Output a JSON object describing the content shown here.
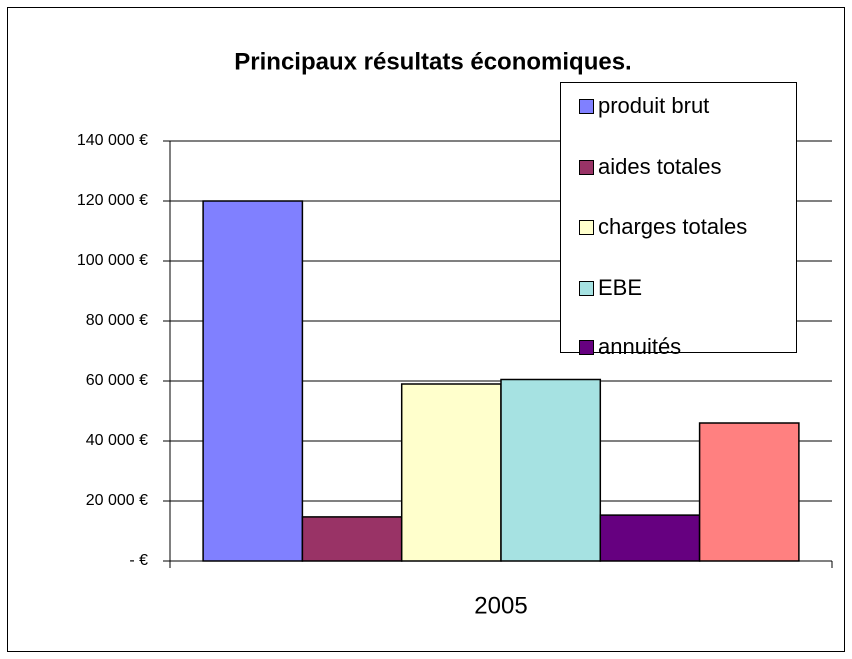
{
  "chart_data": {
    "type": "bar",
    "title": "Principaux résultats économiques.",
    "categories": [
      "2005"
    ],
    "series": [
      {
        "name": "produit brut",
        "color": "#8080ff",
        "values": [
          120000
        ]
      },
      {
        "name": "aides totales",
        "color": "#993366",
        "values": [
          14700
        ]
      },
      {
        "name": "charges totales",
        "color": "#ffffcc",
        "values": [
          59000
        ]
      },
      {
        "name": "EBE",
        "color": "#a6e2e2",
        "values": [
          60500
        ]
      },
      {
        "name": "annuités",
        "color": "#660080",
        "values": [
          15300
        ]
      },
      {
        "color": "#ff8080",
        "values": [
          46000
        ]
      }
    ],
    "ylim": [
      0,
      140000
    ],
    "yticks": [
      {
        "value": 0,
        "label": "-   €"
      },
      {
        "value": 20000,
        "label": "20 000 €"
      },
      {
        "value": 40000,
        "label": "40 000 €"
      },
      {
        "value": 60000,
        "label": "60 000 €"
      },
      {
        "value": 80000,
        "label": "80 000 €"
      },
      {
        "value": 100000,
        "label": "100 000 €"
      },
      {
        "value": 120000,
        "label": "120 000 €"
      },
      {
        "value": 140000,
        "label": "140 000 €"
      }
    ],
    "grid": true,
    "legend": "top-right"
  }
}
